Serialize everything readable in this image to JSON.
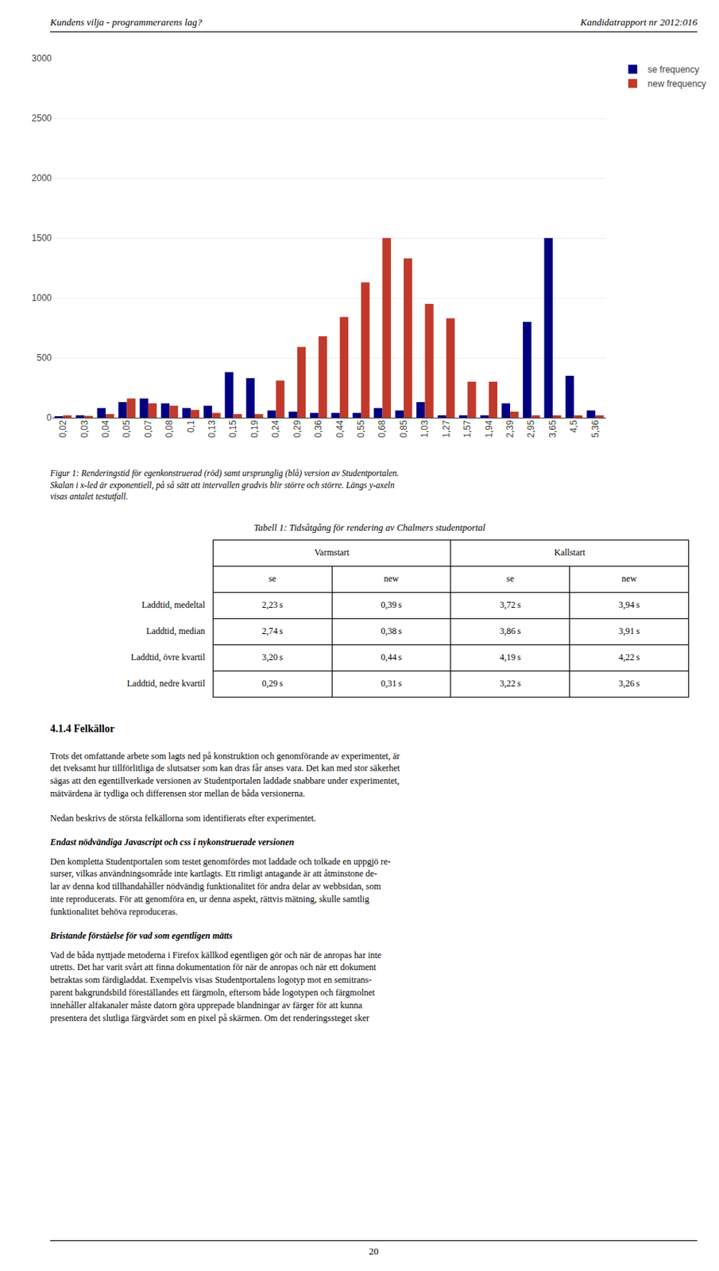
{
  "chart_data": {
    "type": "bar",
    "categories": [
      "0,02",
      "0,03",
      "0,04",
      "0,05",
      "0,07",
      "0,08",
      "0,1",
      "0,13",
      "0,15",
      "0,19",
      "0,24",
      "0,29",
      "0,36",
      "0,44",
      "0,55",
      "0,68",
      "0,85",
      "1,03",
      "1,27",
      "1,57",
      "1,94",
      "2,39",
      "2,95",
      "3,65",
      "4,5",
      "5,36"
    ],
    "series": [
      {
        "name": "se frequency",
        "color": "#000080",
        "values": [
          10,
          20,
          80,
          130,
          160,
          120,
          80,
          100,
          380,
          330,
          60,
          50,
          40,
          40,
          40,
          80,
          60,
          130,
          20,
          20,
          20,
          120,
          800,
          1500,
          350,
          60
        ]
      },
      {
        "name": "new frequency",
        "color": "#C0392B",
        "values": [
          20,
          15,
          30,
          160,
          120,
          100,
          65,
          40,
          30,
          30,
          310,
          590,
          680,
          840,
          1130,
          1500,
          1330,
          950,
          830,
          300,
          300,
          50,
          20,
          20,
          20,
          20
        ]
      }
    ],
    "ylim": [
      0,
      3000
    ],
    "yticks": [
      0,
      500,
      1000,
      1500,
      2000,
      2500,
      3000
    ],
    "grid": true,
    "legend": "upper right",
    "annotations": [
      "Kundens vilja - programmerarens lag?",
      "Kandidatrapport nr 2012:016",
      "Figur 1: Renderingstid för egenkonstruerad (röd) samt ursprunglig (blå) version av Studentportalen.\nSkalan i x-led är exponentiell, på så sätt att intervallen gradvis blir större och större. Längs y-axeln\nvisas antalet testutfall.",
      "4.1.4  Felkällor",
      "Trots det omfattande arbete som lagts ned på konstruktion och genomförande av experimentet, är\ndet tveksamt hur tillförlitliga de slutsatser som kan dras får anses vara. Det kan med stor säkerhet\nsägas att den egentillverkade versionen av Studentportalen laddade snabbare under experimentet,\nmätvärdena är tydliga och differensen stor mellan de båda versionerna.",
      "Nedan beskrivs de största felkällorna som identifierats efter experimentet.",
      "Endast nödvändiga Javascript och css i nykonstruerade versionen",
      "Den kompletta Studentportalen som testet genomfördes mot laddade och tolkade en uppgjö re-\nsurser, vilkas användningsområde inte kartlagts. Ett rimligt antagande är att åtminstone de-\nlar av denna kod tillhandahåller nödvändig funktionalitet för andra delar av webbsidan, som\ninte reproducerats. För att genomföra en, ur denna aspekt, rättvis mätning, skulle samtlig\nfunktionalitet behöva reproduceras.",
      "Bristande förståelse för vad som egentligen mätts",
      "Vad de båda nyttjade metoderna i Firefox källkod egentligen gör och när de anropas har inte\nutretts. Det har varit svårt att finna dokumentation för när de anropas och när ett dokument\nbetraktas som färdigladdat. Exempelvis visas Studentportalens logotyp mot en semitrans-\nparent bakgrundsbild föreställandes ett färgmoln, eftersom både logotypen och färgmolnet\ninnehåller alfakanaler måste datorn göra upprepade blandningar av färger för att kunna\npresentera det slutliga färgvärdet som en pixel på skärmen. Om det renderingssteget sker",
      "20"
    ],
    "table": {
      "title": "Tabell 1: Tidsåtgång för rendering av Chalmers studentportal",
      "col_headers_top": [
        "Varmstart",
        "Kallstart"
      ],
      "col_headers_sub": [
        "se",
        "new",
        "se",
        "new"
      ],
      "row_labels": [
        "Laddtid, medeltal",
        "Laddtid, median",
        "Laddtid, övre kvartil",
        "Laddtid, nedre kvartil"
      ],
      "data": [
        [
          "2,23 s",
          "0,39 s",
          "3,72 s",
          "3,94 s"
        ],
        [
          "2,74 s",
          "0,38 s",
          "3,86 s",
          "3,91 s"
        ],
        [
          "3,20 s",
          "0,44 s",
          "4,19 s",
          "4,22 s"
        ],
        [
          "0,29 s",
          "0,31 s",
          "3,22 s",
          "3,26 s"
        ]
      ]
    }
  }
}
